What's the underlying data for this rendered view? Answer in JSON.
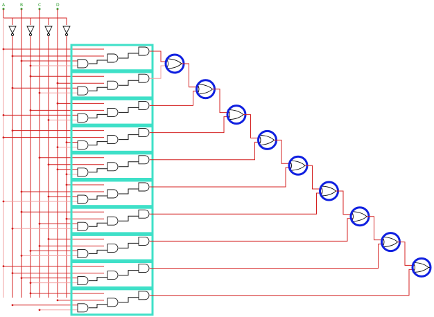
{
  "inputs": [
    {
      "label": "A"
    },
    {
      "label": "B"
    },
    {
      "label": "C"
    },
    {
      "label": "D"
    }
  ],
  "colors": {
    "wire": "#d42020",
    "wire_light": "#f2a0a0",
    "highlight_box": "#3fe0c8",
    "highlight_ring": "#1020e0",
    "pin_label": "#2e9e2e"
  },
  "and_blocks": 10,
  "or_chain": 9
}
